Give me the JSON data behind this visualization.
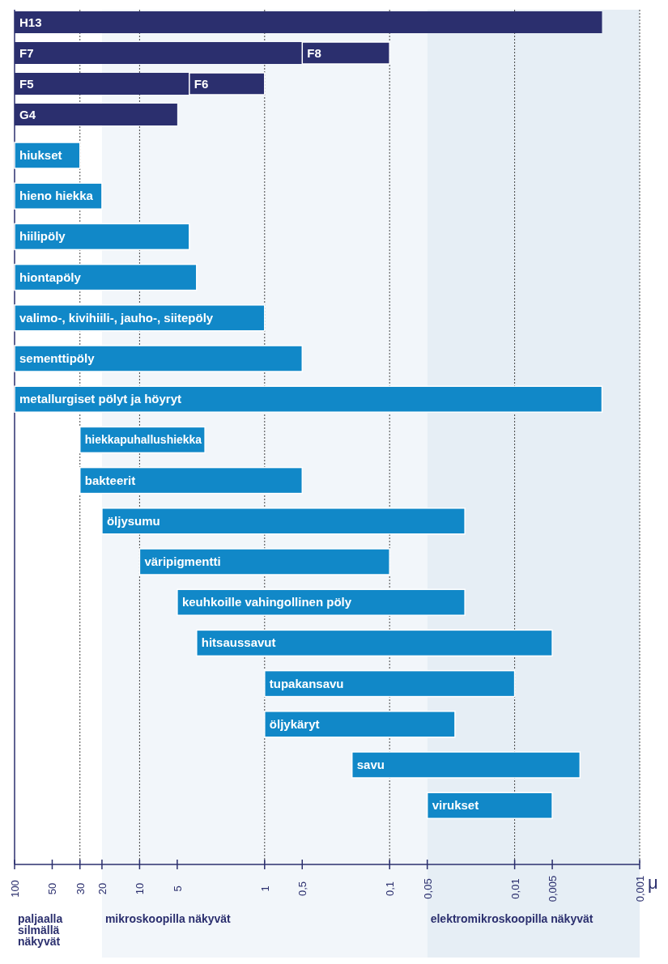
{
  "chart_data": {
    "type": "bar",
    "orientation": "horizontal",
    "xlabel": "μ",
    "tick_labels": "x",
    "categories": [
      "H13",
      "F7",
      "F5",
      "G4",
      "hiukset",
      "hieno hiekka",
      "hiilipöly",
      "hiontapöly",
      "valimo-, kivihiili-, jauho-, siitepöly",
      "sementtipöly",
      "metallurgiset pölyt ja höyryt",
      "hiekkapuhallushiekka",
      "bakteerit",
      "öljysumu",
      "väripigmentti",
      "keuhkoille vahingollinen pöly",
      "hitsaussavut",
      "tupakansavu",
      "öljykäryt",
      "savu",
      "virukset"
    ],
    "series": [
      {
        "color": "#2b2f6e",
        "base": [
          100,
          100,
          100,
          100,
          null,
          null,
          null,
          null,
          null,
          null,
          null,
          null,
          null,
          null,
          null,
          null,
          null,
          null,
          null,
          null,
          null
        ],
        "values": [
          -99.998,
          -99.5,
          -96,
          -95,
          null,
          null,
          null,
          null,
          null,
          null,
          null,
          null,
          null,
          null,
          null,
          null,
          null,
          null,
          null,
          null,
          null
        ]
      },
      {
        "color": "#2b2f6e",
        "base": [
          null,
          0.5,
          4,
          null,
          null,
          null,
          null,
          null,
          null,
          null,
          null,
          null,
          null,
          null,
          null,
          null,
          null,
          null,
          null,
          null,
          null
        ],
        "values": [
          null,
          -0.4,
          -3,
          null,
          null,
          null,
          null,
          null,
          null,
          null,
          null,
          null,
          null,
          null,
          null,
          null,
          null,
          null,
          null,
          null,
          null
        ],
        "value_labels": [
          null,
          "F8",
          "F6",
          null,
          null,
          null,
          null,
          null,
          null,
          null,
          null,
          null,
          null,
          null,
          null,
          null,
          null,
          null,
          null,
          null,
          null
        ]
      },
      {
        "color": "#1188c8",
        "base": [
          null,
          null,
          null,
          null,
          100,
          100,
          100,
          100,
          100,
          100,
          100,
          30,
          30,
          20,
          10,
          5,
          3.5,
          1,
          1,
          0.2,
          0.05
        ],
        "values": [
          null,
          null,
          null,
          null,
          -70,
          -80,
          -96,
          -96.5,
          -99,
          -99.5,
          -99.998,
          -27,
          -29.5,
          -19.975,
          -9.9,
          -4.975,
          -3.495,
          -0.99,
          -0.97,
          -0.197,
          -0.045
        ]
      }
    ],
    "xlim": [
      100,
      0.001
    ],
    "xticks": [
      100,
      50,
      30,
      20,
      10,
      5,
      1,
      {
        "value": 0.5,
        "label": "0,5"
      },
      {
        "value": 0.1,
        "label": "0,1"
      },
      {
        "value": 0.05,
        "label": "0,05"
      },
      {
        "value": 0.01,
        "label": "0,01"
      },
      {
        "value": 0.005,
        "label": "0,005"
      },
      {
        "value": 0.001,
        "label": "0,001"
      }
    ],
    "ref_lines": [
      {
        "axis": "x",
        "value": 30,
        "line_style": "dotted"
      },
      {
        "axis": "x",
        "value": 10,
        "line_style": "dotted"
      },
      {
        "axis": "x",
        "value": 1,
        "line_style": "dotted"
      },
      {
        "axis": "x",
        "value": 0.1,
        "line_style": "dotted"
      },
      {
        "axis": "x",
        "value": 0.01,
        "line_style": "dotted"
      }
    ],
    "annotations": [
      "paljaalla silmällä näkyvät"
    ],
    "bands": [
      {
        "axis": "x",
        "from": 20,
        "to": 0.05,
        "label": "mikroskoopilla näkyvät",
        "color": "#f2f6fa"
      },
      {
        "axis": "x",
        "from": 0.05,
        "to": 0.001,
        "label": "elektromikroskoopilla näkyvät",
        "color": "#e6eef5"
      }
    ],
    "log": "x"
  }
}
